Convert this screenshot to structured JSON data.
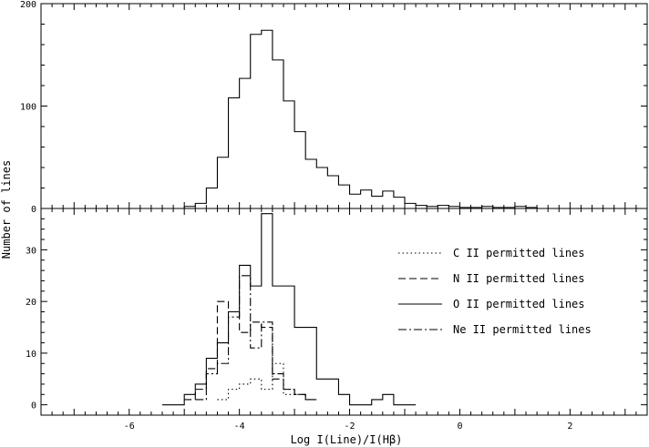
{
  "chart_data": [
    {
      "type": "histogram",
      "panel": "top",
      "xlim": [
        -7.6,
        3.4
      ],
      "ylim": [
        0,
        200
      ],
      "yticks": [
        0,
        100,
        200
      ],
      "ytick_labels": [
        "0",
        "100",
        "200"
      ],
      "ylabel": "Number of lines",
      "bin_width": 0.2,
      "series": [
        {
          "style": "solid",
          "x_edges": [
            -7.2,
            -5.0,
            -4.8,
            -4.6,
            -4.4,
            -4.2,
            -4.0,
            -3.8,
            -3.6,
            -3.4,
            -3.2,
            -3.0,
            -2.8,
            -2.6,
            -2.4,
            -2.2,
            -2.0,
            -1.8,
            -1.6,
            -1.4,
            -1.2,
            -1.0,
            -0.8,
            -0.6,
            -0.4,
            -0.2,
            0.0,
            0.2,
            0.4,
            0.6,
            0.8,
            1.0,
            1.2,
            1.4,
            3.0
          ],
          "counts": [
            0,
            2,
            5,
            20,
            50,
            108,
            127,
            170,
            174,
            145,
            105,
            75,
            48,
            40,
            32,
            23,
            14,
            18,
            12,
            17,
            11,
            5,
            3,
            2,
            3,
            2,
            1,
            1,
            2,
            1,
            1,
            2,
            1,
            0
          ]
        }
      ]
    },
    {
      "type": "histogram",
      "panel": "bottom",
      "xlim": [
        -7.6,
        3.4
      ],
      "ylim": [
        -2,
        38
      ],
      "xticks": [
        -6,
        -4,
        -2,
        0,
        2
      ],
      "xtick_labels": [
        "-6",
        "-4",
        "-2",
        "0",
        "2"
      ],
      "yticks": [
        0,
        10,
        20,
        30
      ],
      "ytick_labels": [
        "0",
        "10",
        "20",
        "30"
      ],
      "xlabel": "Log I(Line)/I(Hβ)",
      "legend": "right",
      "series": [
        {
          "name": "C II permitted lines",
          "style": "dotted",
          "x_edges": [
            -4.4,
            -4.2,
            -4.0,
            -3.8,
            -3.6,
            -3.4,
            -3.2,
            -3.0,
            -2.8,
            -2.6
          ],
          "counts": [
            1,
            3,
            4,
            5,
            3,
            8,
            2,
            2,
            1
          ]
        },
        {
          "name": "N II permitted lines",
          "style": "dashed",
          "x_edges": [
            -5.0,
            -4.8,
            -4.6,
            -4.4,
            -4.2,
            -4.0,
            -3.8,
            -3.6,
            -3.4,
            -3.2,
            -3.0,
            -2.8,
            -2.6
          ],
          "counts": [
            1,
            3,
            7,
            20,
            18,
            14,
            16,
            15,
            5,
            3,
            2,
            1
          ]
        },
        {
          "name": "O II permitted lines",
          "style": "solid",
          "x_edges": [
            -5.4,
            -5.0,
            -4.8,
            -4.6,
            -4.4,
            -4.2,
            -4.0,
            -3.8,
            -3.6,
            -3.4,
            -3.2,
            -3.0,
            -2.6,
            -2.2,
            -2.0,
            -1.6,
            -1.4,
            -1.2,
            -0.8
          ],
          "counts": [
            0,
            2,
            4,
            9,
            12,
            18,
            27,
            23,
            37,
            23,
            23,
            15,
            5,
            2,
            0,
            1,
            2,
            0
          ]
        },
        {
          "name": "Ne II permitted lines",
          "style": "dashdot",
          "x_edges": [
            -4.8,
            -4.6,
            -4.4,
            -4.2,
            -4.0,
            -3.8,
            -3.6,
            -3.4,
            -3.2,
            -3.0,
            -2.8,
            -2.6
          ],
          "counts": [
            1,
            6,
            8,
            17,
            25,
            11,
            16,
            6,
            3,
            2,
            1
          ]
        }
      ]
    }
  ]
}
